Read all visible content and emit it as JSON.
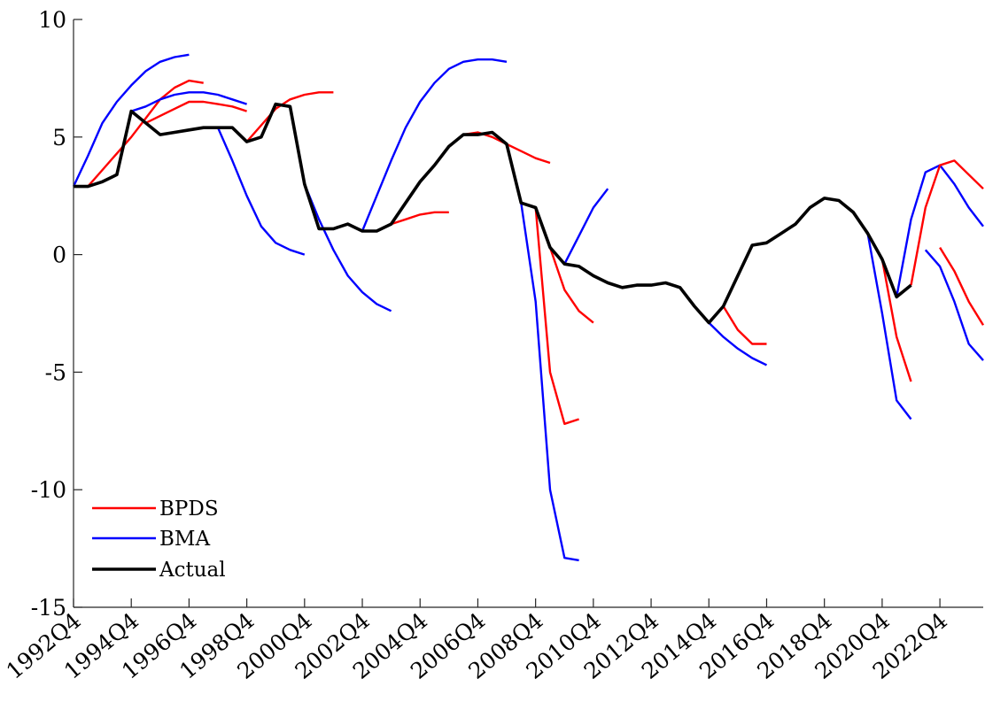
{
  "chart_data": {
    "type": "line",
    "title": "",
    "xlabel": "",
    "ylabel": "",
    "ylim": [
      -15,
      10
    ],
    "xlim": [
      "1992Q4",
      "2024Q2"
    ],
    "y_ticks": [
      10,
      5,
      0,
      -5,
      -10,
      -15
    ],
    "x_ticks": [
      "1992Q4",
      "1994Q4",
      "1996Q4",
      "1998Q4",
      "2000Q4",
      "2002Q4",
      "2004Q4",
      "2006Q4",
      "2008Q4",
      "2010Q4",
      "2012Q4",
      "2014Q4",
      "2016Q4",
      "2018Q4",
      "2020Q4",
      "2022Q4"
    ],
    "grid": false,
    "legend": {
      "placement": "bottom-left",
      "entries": [
        "BPDS",
        "BMA",
        "Actual"
      ]
    },
    "colors": {
      "BPDS": "#ff0000",
      "BMA": "#0000ff",
      "Actual": "#000000"
    },
    "series": [
      {
        "name": "Actual",
        "x": [
          "1992Q4",
          "1993Q2",
          "1993Q4",
          "1994Q2",
          "1994Q4",
          "1995Q2",
          "1995Q4",
          "1996Q2",
          "1996Q4",
          "1997Q2",
          "1997Q4",
          "1998Q2",
          "1998Q4",
          "1999Q2",
          "1999Q4",
          "2000Q2",
          "2000Q4",
          "2001Q2",
          "2001Q4",
          "2002Q2",
          "2002Q4",
          "2003Q2",
          "2003Q4",
          "2004Q2",
          "2004Q4",
          "2005Q2",
          "2005Q4",
          "2006Q2",
          "2006Q4",
          "2007Q2",
          "2007Q4",
          "2008Q2",
          "2008Q4",
          "2009Q2",
          "2009Q4",
          "2010Q2",
          "2010Q4",
          "2011Q2",
          "2011Q4",
          "2012Q2",
          "2012Q4",
          "2013Q2",
          "2013Q4",
          "2014Q2",
          "2014Q4",
          "2015Q2",
          "2015Q4",
          "2016Q2",
          "2016Q4",
          "2017Q2",
          "2017Q4",
          "2018Q2",
          "2018Q4",
          "2019Q2",
          "2019Q4",
          "2020Q2",
          "2020Q4",
          "2021Q2",
          "2021Q4"
        ],
        "values": [
          2.9,
          2.9,
          3.1,
          3.4,
          6.1,
          5.6,
          5.1,
          5.2,
          5.3,
          5.4,
          5.4,
          5.4,
          4.8,
          5.0,
          6.4,
          6.3,
          3.0,
          1.1,
          1.1,
          1.3,
          1.0,
          1.0,
          1.3,
          2.2,
          3.1,
          3.8,
          4.6,
          5.1,
          5.1,
          5.2,
          4.7,
          2.2,
          2.0,
          0.3,
          -0.4,
          -0.5,
          -0.9,
          -1.2,
          -1.4,
          -1.3,
          -1.3,
          -1.2,
          -1.4,
          -2.2,
          -2.9,
          -2.2,
          -0.9,
          0.4,
          0.5,
          0.9,
          1.3,
          2.0,
          2.4,
          2.3,
          1.8,
          0.9,
          -0.2,
          -1.8,
          -1.3
        ]
      },
      {
        "name": "BMA",
        "x": [
          "1992Q4",
          "1993Q2",
          "1993Q4",
          "1994Q2",
          "1994Q4",
          "1995Q2",
          "1995Q4",
          "1996Q2",
          "1996Q4"
        ],
        "values": [
          2.9,
          4.2,
          5.6,
          6.5,
          7.2,
          7.8,
          8.2,
          8.4,
          8.5
        ]
      },
      {
        "name": "BPDS",
        "x": [
          "1993Q2",
          "1993Q4",
          "1994Q2",
          "1994Q4",
          "1995Q2",
          "1995Q4",
          "1996Q2",
          "1996Q4",
          "1997Q2"
        ],
        "values": [
          2.9,
          3.6,
          4.3,
          5.0,
          5.8,
          6.6,
          7.1,
          7.4,
          7.3
        ]
      },
      {
        "name": "BMA",
        "x": [
          "1994Q4",
          "1995Q2",
          "1995Q4",
          "1996Q2",
          "1996Q4",
          "1997Q2",
          "1997Q4",
          "1998Q2",
          "1998Q4"
        ],
        "values": [
          6.1,
          6.3,
          6.6,
          6.8,
          6.9,
          6.9,
          6.8,
          6.6,
          6.4
        ]
      },
      {
        "name": "BPDS",
        "x": [
          "1995Q2",
          "1995Q4",
          "1996Q2",
          "1996Q4",
          "1997Q2",
          "1997Q4",
          "1998Q2",
          "1998Q4"
        ],
        "values": [
          5.6,
          5.9,
          6.2,
          6.5,
          6.5,
          6.4,
          6.3,
          6.1
        ]
      },
      {
        "name": "BMA",
        "x": [
          "1997Q4",
          "1998Q2",
          "1998Q4",
          "1999Q2",
          "1999Q4",
          "2000Q2",
          "2000Q4"
        ],
        "values": [
          5.4,
          4.0,
          2.5,
          1.2,
          0.5,
          0.2,
          0.0
        ]
      },
      {
        "name": "BPDS",
        "x": [
          "1998Q4",
          "1999Q2",
          "1999Q4",
          "2000Q2",
          "2000Q4",
          "2001Q2",
          "2001Q4"
        ],
        "values": [
          4.8,
          5.5,
          6.2,
          6.6,
          6.8,
          6.9,
          6.9
        ]
      },
      {
        "name": "BMA",
        "x": [
          "2000Q4",
          "2001Q2",
          "2001Q4",
          "2002Q2",
          "2002Q4",
          "2003Q2",
          "2003Q4"
        ],
        "values": [
          3.0,
          1.5,
          0.2,
          -0.9,
          -1.6,
          -2.1,
          -2.4
        ]
      },
      {
        "name": "BMA",
        "x": [
          "2002Q4",
          "2003Q2",
          "2003Q4",
          "2004Q2",
          "2004Q4",
          "2005Q2",
          "2005Q4",
          "2006Q2",
          "2006Q4",
          "2007Q2",
          "2007Q4"
        ],
        "values": [
          1.0,
          2.5,
          4.0,
          5.4,
          6.5,
          7.3,
          7.9,
          8.2,
          8.3,
          8.3,
          8.2
        ]
      },
      {
        "name": "BPDS",
        "x": [
          "2003Q2",
          "2003Q4",
          "2004Q2",
          "2004Q4",
          "2005Q2",
          "2005Q4"
        ],
        "values": [
          1.0,
          1.3,
          1.5,
          1.7,
          1.8,
          1.8
        ]
      },
      {
        "name": "BPDS",
        "x": [
          "2006Q2",
          "2006Q4",
          "2007Q2",
          "2007Q4",
          "2008Q2",
          "2008Q4",
          "2009Q2"
        ],
        "values": [
          5.1,
          5.2,
          5.0,
          4.7,
          4.4,
          4.1,
          3.9
        ]
      },
      {
        "name": "BMA",
        "x": [
          "2008Q2",
          "2008Q4",
          "2009Q2",
          "2009Q4",
          "2010Q2"
        ],
        "values": [
          2.2,
          -2.0,
          -10.0,
          -12.9,
          -13.0
        ]
      },
      {
        "name": "BPDS",
        "x": [
          "2008Q4",
          "2009Q2",
          "2009Q4",
          "2010Q2"
        ],
        "values": [
          2.0,
          -5.0,
          -7.2,
          -7.0
        ]
      },
      {
        "name": "BMA",
        "x": [
          "2009Q4",
          "2010Q2",
          "2010Q4",
          "2011Q2"
        ],
        "values": [
          -0.4,
          0.8,
          2.0,
          2.8
        ]
      },
      {
        "name": "BPDS",
        "x": [
          "2009Q2",
          "2009Q4",
          "2010Q2",
          "2010Q4"
        ],
        "values": [
          0.3,
          -1.5,
          -2.4,
          -2.9
        ]
      },
      {
        "name": "BMA",
        "x": [
          "2014Q4",
          "2015Q2",
          "2015Q4",
          "2016Q2",
          "2016Q4"
        ],
        "values": [
          -2.9,
          -3.5,
          -4.0,
          -4.4,
          -4.7
        ]
      },
      {
        "name": "BPDS",
        "x": [
          "2015Q2",
          "2015Q4",
          "2016Q2",
          "2016Q4"
        ],
        "values": [
          -2.2,
          -3.2,
          -3.8,
          -3.8
        ]
      },
      {
        "name": "BMA",
        "x": [
          "2020Q2",
          "2020Q4",
          "2021Q2",
          "2021Q4"
        ],
        "values": [
          0.9,
          -2.5,
          -6.2,
          -7.0
        ]
      },
      {
        "name": "BPDS",
        "x": [
          "2020Q4",
          "2021Q2",
          "2021Q4"
        ],
        "values": [
          -0.2,
          -3.5,
          -5.4
        ]
      },
      {
        "name": "BMA",
        "x": [
          "2021Q2",
          "2021Q4",
          "2022Q2",
          "2022Q4",
          "2023Q2",
          "2023Q4",
          "2024Q2"
        ],
        "values": [
          -1.8,
          1.5,
          3.5,
          3.8,
          3.0,
          2.0,
          1.2
        ]
      },
      {
        "name": "BPDS",
        "x": [
          "2021Q4",
          "2022Q2",
          "2022Q4",
          "2023Q2",
          "2023Q4",
          "2024Q2"
        ],
        "values": [
          -1.3,
          2.0,
          3.8,
          4.0,
          3.4,
          2.8
        ]
      },
      {
        "name": "BMA",
        "x": [
          "2022Q2",
          "2022Q4",
          "2023Q2",
          "2023Q4",
          "2024Q2"
        ],
        "values": [
          0.2,
          -0.5,
          -2.0,
          -3.8,
          -4.5
        ]
      },
      {
        "name": "BPDS",
        "x": [
          "2022Q4",
          "2023Q2",
          "2023Q4",
          "2024Q2"
        ],
        "values": [
          0.3,
          -0.7,
          -2.0,
          -3.0
        ]
      }
    ]
  }
}
